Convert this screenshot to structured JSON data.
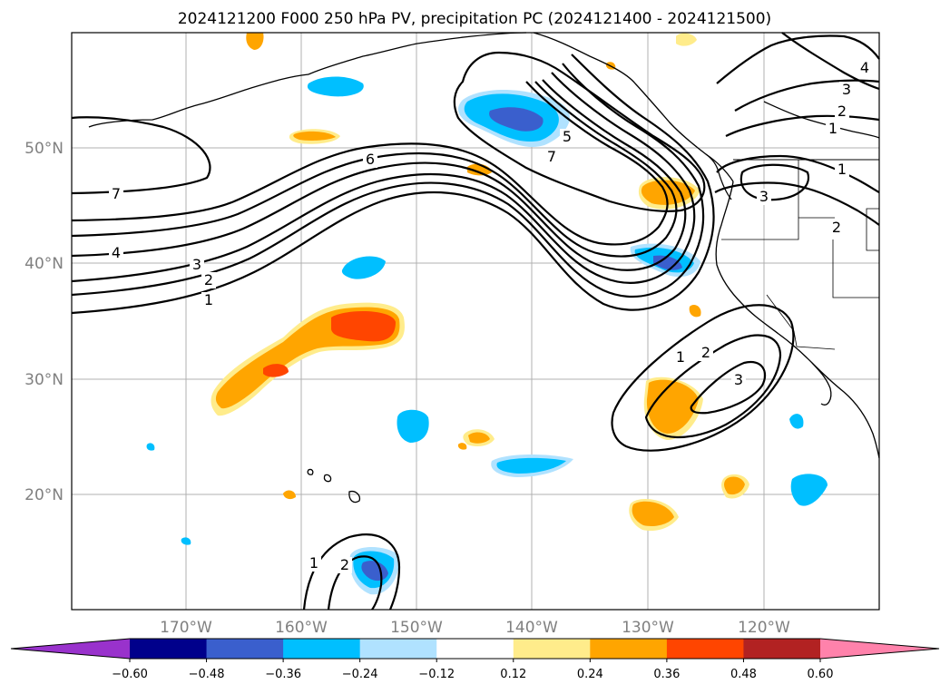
{
  "title": "2024121200 F000 250 hPa PV, precipitation PC (2024121400 - 2024121500)",
  "lat_labels": [
    "50°N",
    "40°N",
    "30°N",
    "20°N"
  ],
  "lon_labels": [
    "170°W",
    "160°W",
    "150°W",
    "140°W",
    "130°W",
    "120°W"
  ],
  "colorbar": {
    "ticks": [
      "−0.60",
      "−0.48",
      "−0.36",
      "−0.24",
      "−0.12",
      "0.12",
      "0.24",
      "0.36",
      "0.48",
      "0.60"
    ],
    "colors": [
      "#9932CC",
      "#00008B",
      "#3A5FCD",
      "#00BFFF",
      "#B0E2FF",
      "#FFFFFF",
      "#FFEC8B",
      "#FFA500",
      "#FF4500",
      "#B22222",
      "#FF82AB"
    ]
  },
  "contour_labels": {
    "c1": "1",
    "c2": "2",
    "c3": "3",
    "c4": "4",
    "c5": "5",
    "c6": "6",
    "c7": "7"
  },
  "chart_data": {
    "type": "heatmap",
    "title": "2024121200 F000 250 hPa PV, precipitation PC (2024121400 - 2024121500)",
    "xlabel": "",
    "ylabel": "",
    "lon_range": [
      "180°W",
      "110°W"
    ],
    "lat_range": [
      "10°N",
      "60°N"
    ],
    "grid": true,
    "pv_contour_levels": [
      1,
      2,
      3,
      4,
      5,
      6,
      7
    ],
    "colorbar_levels": [
      -0.6,
      -0.48,
      -0.36,
      -0.24,
      -0.12,
      0.12,
      0.24,
      0.36,
      0.48,
      0.6
    ]
  }
}
